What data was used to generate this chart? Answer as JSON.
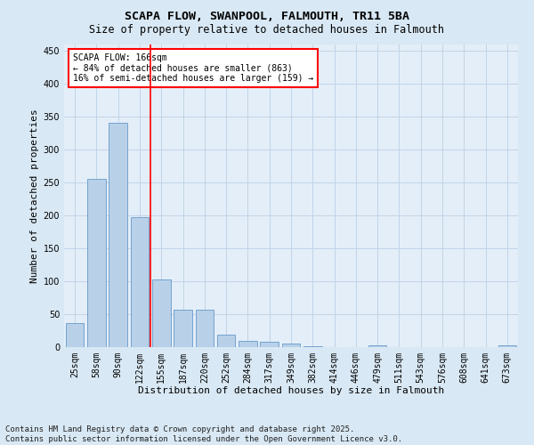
{
  "title": "SCAPA FLOW, SWANPOOL, FALMOUTH, TR11 5BA",
  "subtitle": "Size of property relative to detached houses in Falmouth",
  "xlabel": "Distribution of detached houses by size in Falmouth",
  "ylabel": "Number of detached properties",
  "categories": [
    "25sqm",
    "58sqm",
    "90sqm",
    "122sqm",
    "155sqm",
    "187sqm",
    "220sqm",
    "252sqm",
    "284sqm",
    "317sqm",
    "349sqm",
    "382sqm",
    "414sqm",
    "446sqm",
    "479sqm",
    "511sqm",
    "543sqm",
    "576sqm",
    "608sqm",
    "641sqm",
    "673sqm"
  ],
  "values": [
    36,
    256,
    341,
    198,
    103,
    57,
    57,
    19,
    10,
    8,
    5,
    2,
    0,
    0,
    3,
    0,
    0,
    0,
    0,
    0,
    3
  ],
  "bar_color": "#b8d0e8",
  "bar_edge_color": "#6699cc",
  "vline_x_index": 3.5,
  "vline_color": "red",
  "annotation_text": "SCAPA FLOW: 166sqm\n← 84% of detached houses are smaller (863)\n16% of semi-detached houses are larger (159) →",
  "annotation_box_color": "red",
  "annotation_bg_color": "white",
  "ylim": [
    0,
    460
  ],
  "yticks": [
    0,
    50,
    100,
    150,
    200,
    250,
    300,
    350,
    400,
    450
  ],
  "grid_color": "#c0d4e8",
  "bg_color": "#d8e8f4",
  "plot_bg_color": "#e4eef8",
  "footer_line1": "Contains HM Land Registry data © Crown copyright and database right 2025.",
  "footer_line2": "Contains public sector information licensed under the Open Government Licence v3.0.",
  "title_fontsize": 9.5,
  "subtitle_fontsize": 8.5,
  "xlabel_fontsize": 8,
  "ylabel_fontsize": 8,
  "tick_fontsize": 7,
  "annotation_fontsize": 7,
  "footer_fontsize": 6.5
}
